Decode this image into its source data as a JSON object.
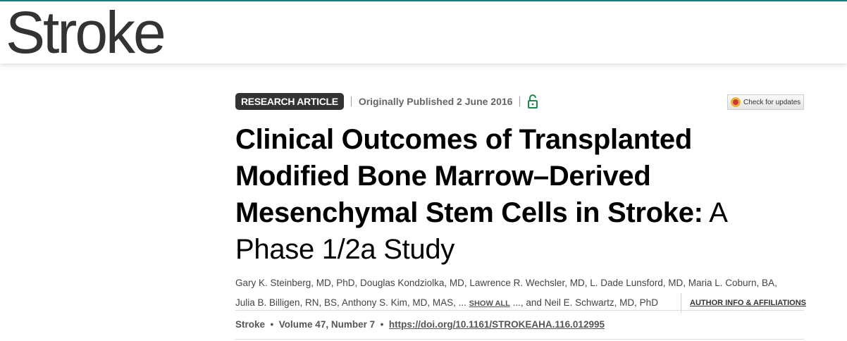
{
  "journal": {
    "logo_text": "Stroke",
    "accent": "#1b7b7e"
  },
  "meta": {
    "article_type": "RESEARCH ARTICLE",
    "published": "Originally Published 2 June 2016",
    "access_icon": "open-lock-icon",
    "check_updates": "Check for updates"
  },
  "title": {
    "main": "Clinical Outcomes of Transplanted Modified Bone Marrow–Derived Mesenchymal Stem Cells in Stroke:",
    "subtitle": " A Phase 1/2a Study"
  },
  "authors": {
    "line1": "Gary K. Steinberg, MD, PhD, Douglas Kondziolka, MD, Lawrence R. Wechsler, MD, L. Dade Lunsford, MD, Maria L. Coburn, BA,",
    "line2_start": "Julia B. Billigen, RN, BS, Anthony S. Kim, MD, MAS, ... ",
    "show_all": "SHOW ALL",
    "line2_end": " ..., and Neil E. Schwartz, MD, PhD",
    "author_info": "AUTHOR INFO & AFFILIATIONS"
  },
  "citation": {
    "journal": "Stroke",
    "volume": "Volume 47, Number 7",
    "doi": "https://doi.org/10.1161/STROKEAHA.116.012995",
    "bullet": "•"
  }
}
